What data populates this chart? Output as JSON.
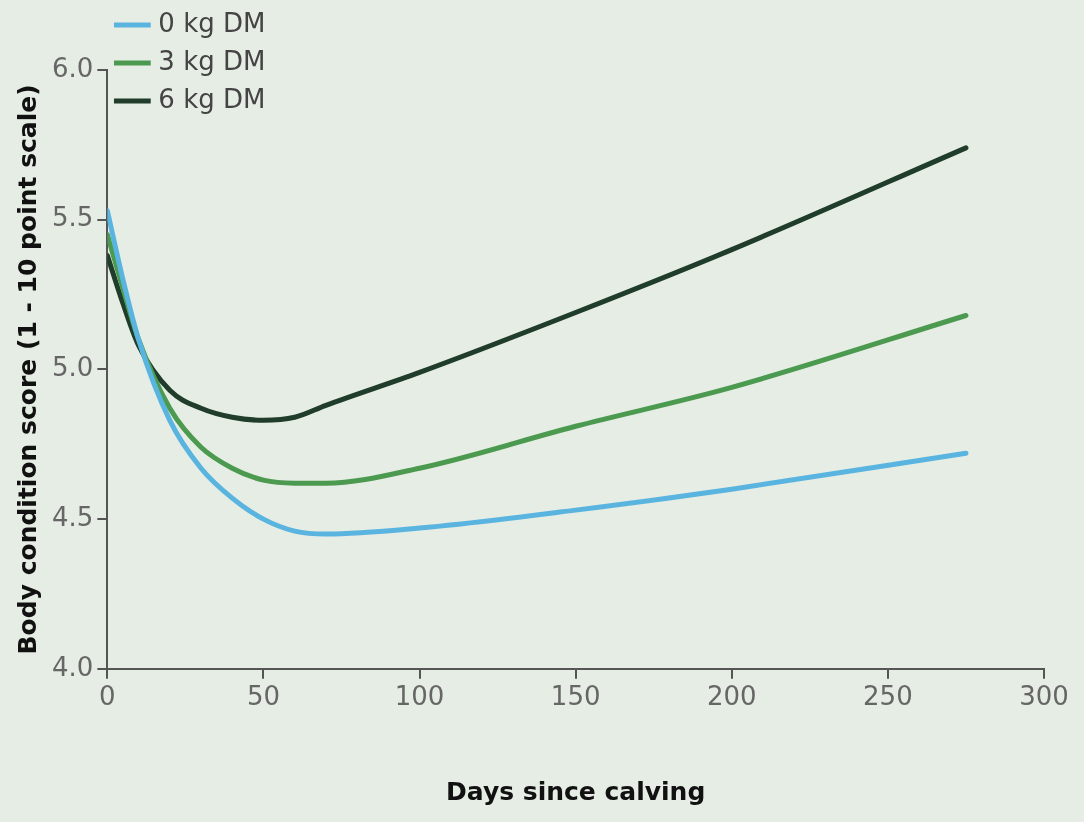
{
  "chart_data": {
    "type": "line",
    "xlabel": "Days since calving",
    "ylabel": "Body condition score (1 - 10 point scale)",
    "xlim": [
      0,
      300
    ],
    "xticks": [
      0,
      50,
      100,
      150,
      200,
      250,
      300
    ],
    "ylim": [
      4.0,
      6.0
    ],
    "yticks": [
      {
        "value": 4,
        "label": "4.0"
      },
      {
        "value": 4.5,
        "label": "4.5"
      },
      {
        "value": 5,
        "label": "5.0"
      },
      {
        "value": 5.5,
        "label": "5.5"
      },
      {
        "value": 6,
        "label": "6.0"
      }
    ],
    "grid": false,
    "legend": "top left",
    "marker": "none",
    "line_style": "solid",
    "x": [
      0,
      5,
      10,
      20,
      30,
      40,
      50,
      60,
      70,
      100,
      150,
      200,
      275
    ],
    "series": [
      {
        "name": "0 kg DM",
        "color": "#5ab4e0",
        "values": [
          5.53,
          5.3,
          5.1,
          4.83,
          4.67,
          4.57,
          4.5,
          4.46,
          4.45,
          4.47,
          4.53,
          4.6,
          4.72
        ]
      },
      {
        "name": "3 kg DM",
        "color": "#4c9a50",
        "values": [
          5.45,
          5.27,
          5.1,
          4.87,
          4.74,
          4.67,
          4.63,
          4.62,
          4.62,
          4.67,
          4.81,
          4.94,
          5.18
        ]
      },
      {
        "name": "6 kg DM",
        "color": "#1f3d2a",
        "values": [
          5.38,
          5.22,
          5.08,
          4.93,
          4.87,
          4.84,
          4.83,
          4.84,
          4.88,
          4.99,
          5.19,
          5.4,
          5.74
        ]
      }
    ]
  }
}
